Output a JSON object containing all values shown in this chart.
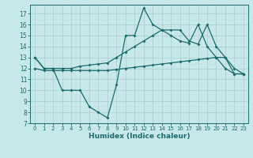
{
  "line1_x": [
    0,
    1,
    2,
    3,
    4,
    5,
    6,
    7,
    8,
    9,
    10,
    11,
    12,
    13,
    14,
    15,
    16,
    17,
    18,
    19,
    20,
    21,
    22,
    23
  ],
  "line1_y": [
    13,
    12,
    12,
    10,
    10,
    10,
    8.5,
    8,
    7.5,
    10.5,
    15,
    15,
    17.5,
    16,
    15.5,
    15,
    14.5,
    14.3,
    16,
    14,
    13,
    12,
    11.5,
    11.5
  ],
  "line2_x": [
    0,
    1,
    2,
    3,
    4,
    5,
    6,
    7,
    8,
    9,
    10,
    11,
    12,
    13,
    14,
    15,
    16,
    17,
    18,
    19,
    20,
    21,
    22,
    23
  ],
  "line2_y": [
    13,
    12,
    12,
    12,
    12,
    12.2,
    12.3,
    12.4,
    12.5,
    13,
    13.5,
    14,
    14.5,
    15,
    15.5,
    15.5,
    15.5,
    14.5,
    14.2,
    16,
    14,
    13,
    12,
    11.5
  ],
  "line3_x": [
    0,
    1,
    2,
    3,
    4,
    5,
    6,
    7,
    8,
    9,
    10,
    11,
    12,
    13,
    14,
    15,
    16,
    17,
    18,
    19,
    20,
    21,
    22,
    23
  ],
  "line3_y": [
    12,
    11.8,
    11.8,
    11.8,
    11.8,
    11.8,
    11.8,
    11.8,
    11.8,
    11.9,
    12.0,
    12.1,
    12.2,
    12.3,
    12.4,
    12.5,
    12.6,
    12.7,
    12.8,
    12.9,
    13.0,
    13.0,
    11.5,
    11.5
  ],
  "color": "#1a6b6b",
  "bg_color": "#c8e8e8",
  "grid_color": "#a8cccc",
  "xlabel": "Humidex (Indice chaleur)",
  "xlim": [
    -0.5,
    23.5
  ],
  "ylim": [
    7,
    17.8
  ],
  "yticks": [
    7,
    8,
    9,
    10,
    11,
    12,
    13,
    14,
    15,
    16,
    17
  ],
  "xticks": [
    0,
    1,
    2,
    3,
    4,
    5,
    6,
    7,
    8,
    9,
    10,
    11,
    12,
    13,
    14,
    15,
    16,
    17,
    18,
    19,
    20,
    21,
    22,
    23
  ],
  "marker": "D",
  "markersize": 2,
  "linewidth": 0.9,
  "tick_fontsize": 5,
  "xlabel_fontsize": 6.5
}
